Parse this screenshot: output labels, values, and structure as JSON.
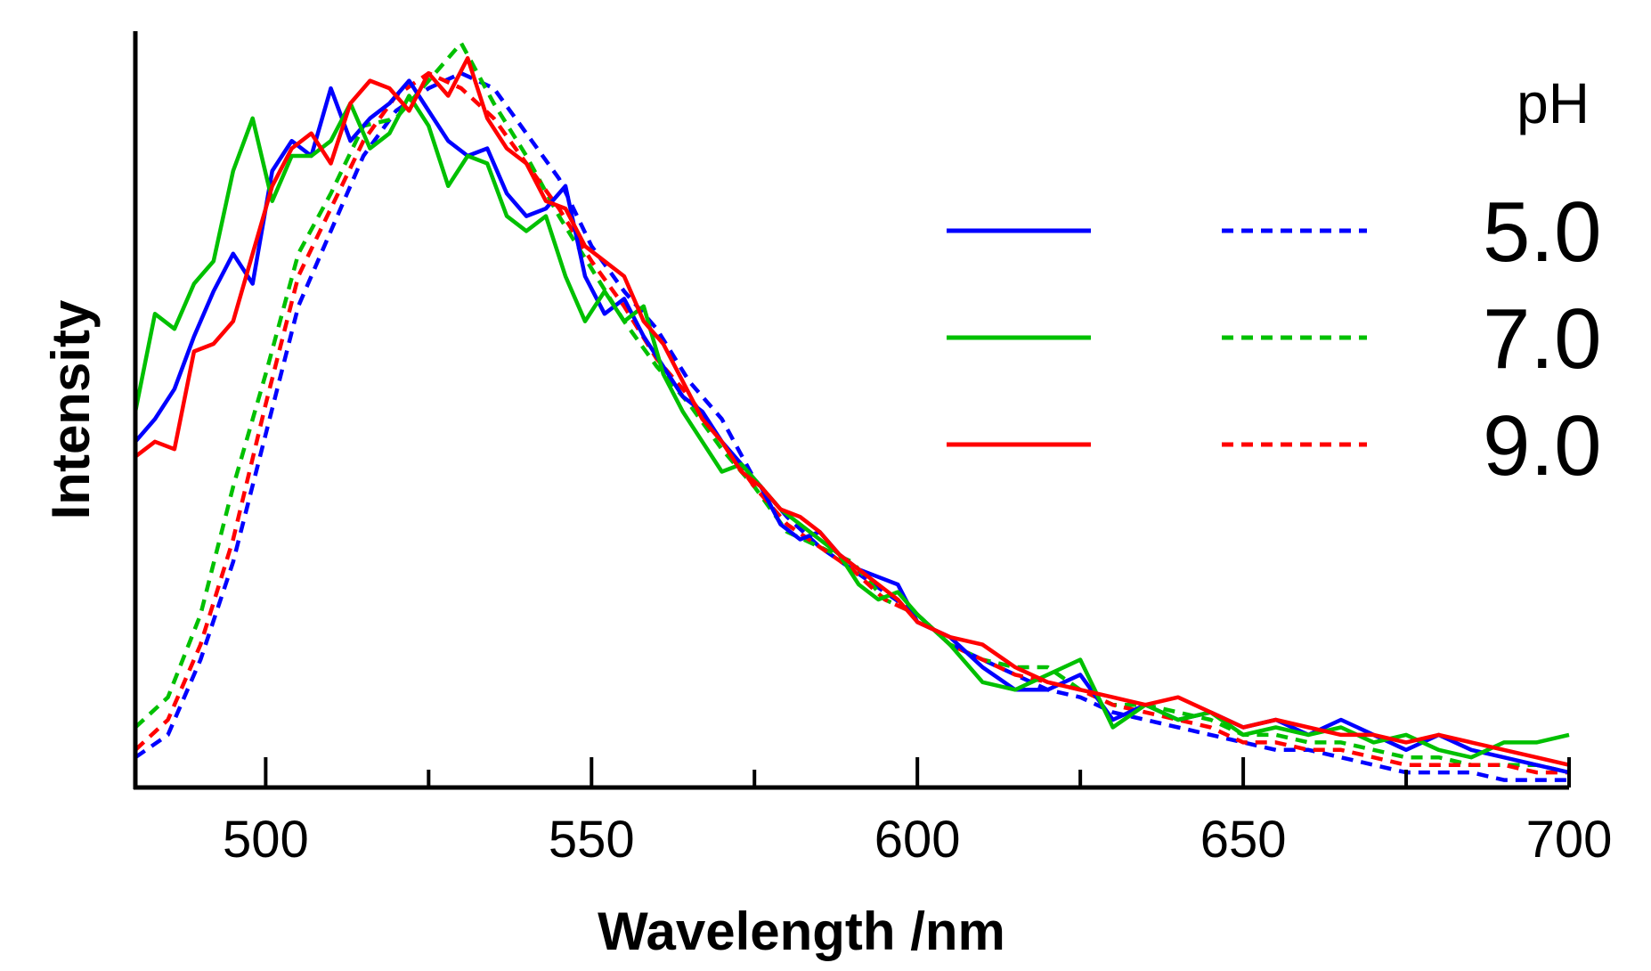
{
  "chart_data": {
    "type": "line",
    "title": "",
    "xlabel": "Wavelength /nm",
    "ylabel": "Intensity",
    "xlim": [
      480,
      700
    ],
    "ylim": [
      0,
      1
    ],
    "xticks_major": [
      500,
      550,
      600,
      650,
      700
    ],
    "xticks_minor": [
      525,
      575,
      625,
      675
    ],
    "x_tick_labels": [
      "500",
      "550",
      "600",
      "650",
      "700"
    ],
    "grid": false,
    "legend": {
      "title": "pH",
      "position": "right",
      "columns": [
        "solid",
        "dashed"
      ],
      "entries": [
        {
          "label": "5.0",
          "color": "#0000ff"
        },
        {
          "label": "7.0",
          "color": "#00c000"
        },
        {
          "label": "9.0",
          "color": "#ff0000"
        }
      ]
    },
    "series": [
      {
        "name": "pH 5.0 (solid)",
        "color": "#0000ff",
        "style": "solid",
        "x": [
          480,
          483,
          486,
          489,
          492,
          495,
          498,
          501,
          504,
          507,
          510,
          513,
          516,
          519,
          522,
          525,
          528,
          531,
          534,
          537,
          540,
          543,
          546,
          549,
          552,
          555,
          558,
          561,
          564,
          567,
          570,
          573,
          576,
          579,
          582,
          585,
          588,
          591,
          594,
          597,
          600,
          605,
          610,
          615,
          620,
          625,
          630,
          635,
          640,
          645,
          650,
          655,
          660,
          665,
          670,
          675,
          680,
          685,
          690,
          695,
          700
        ],
        "y": [
          0.46,
          0.49,
          0.53,
          0.6,
          0.66,
          0.71,
          0.67,
          0.82,
          0.86,
          0.84,
          0.93,
          0.86,
          0.89,
          0.91,
          0.94,
          0.9,
          0.86,
          0.84,
          0.85,
          0.79,
          0.76,
          0.77,
          0.8,
          0.68,
          0.63,
          0.65,
          0.6,
          0.56,
          0.52,
          0.5,
          0.46,
          0.43,
          0.4,
          0.35,
          0.33,
          0.34,
          0.31,
          0.29,
          0.28,
          0.27,
          0.22,
          0.2,
          0.16,
          0.13,
          0.13,
          0.15,
          0.09,
          0.11,
          0.09,
          0.1,
          0.08,
          0.09,
          0.07,
          0.09,
          0.07,
          0.05,
          0.07,
          0.05,
          0.04,
          0.03,
          0.02
        ]
      },
      {
        "name": "pH 7.0 (solid)",
        "color": "#00c000",
        "style": "solid",
        "x": [
          480,
          483,
          486,
          489,
          492,
          495,
          498,
          501,
          504,
          507,
          510,
          513,
          516,
          519,
          522,
          525,
          528,
          531,
          534,
          537,
          540,
          543,
          546,
          549,
          552,
          555,
          558,
          561,
          564,
          567,
          570,
          573,
          576,
          579,
          582,
          585,
          588,
          591,
          594,
          597,
          600,
          605,
          610,
          615,
          620,
          625,
          630,
          635,
          640,
          645,
          650,
          655,
          660,
          665,
          670,
          675,
          680,
          685,
          690,
          695,
          700
        ],
        "y": [
          0.5,
          0.63,
          0.61,
          0.67,
          0.7,
          0.82,
          0.89,
          0.78,
          0.84,
          0.84,
          0.86,
          0.91,
          0.85,
          0.87,
          0.92,
          0.88,
          0.8,
          0.84,
          0.83,
          0.76,
          0.74,
          0.76,
          0.68,
          0.62,
          0.66,
          0.62,
          0.64,
          0.55,
          0.5,
          0.46,
          0.42,
          0.43,
          0.4,
          0.37,
          0.35,
          0.33,
          0.31,
          0.27,
          0.25,
          0.26,
          0.23,
          0.19,
          0.14,
          0.13,
          0.15,
          0.17,
          0.08,
          0.11,
          0.09,
          0.1,
          0.07,
          0.08,
          0.07,
          0.08,
          0.06,
          0.07,
          0.05,
          0.04,
          0.06,
          0.06,
          0.07
        ]
      },
      {
        "name": "pH 9.0 (solid)",
        "color": "#ff0000",
        "style": "solid",
        "x": [
          480,
          483,
          486,
          489,
          492,
          495,
          498,
          501,
          504,
          507,
          510,
          513,
          516,
          519,
          522,
          525,
          528,
          531,
          534,
          537,
          540,
          543,
          546,
          549,
          552,
          555,
          558,
          561,
          564,
          567,
          570,
          573,
          576,
          579,
          582,
          585,
          588,
          591,
          594,
          597,
          600,
          605,
          610,
          615,
          620,
          625,
          630,
          635,
          640,
          645,
          650,
          655,
          660,
          665,
          670,
          675,
          680,
          685,
          690,
          695,
          700
        ],
        "y": [
          0.44,
          0.46,
          0.45,
          0.58,
          0.59,
          0.62,
          0.71,
          0.8,
          0.85,
          0.87,
          0.83,
          0.91,
          0.94,
          0.93,
          0.9,
          0.95,
          0.92,
          0.97,
          0.89,
          0.85,
          0.83,
          0.78,
          0.77,
          0.72,
          0.7,
          0.68,
          0.62,
          0.59,
          0.54,
          0.49,
          0.46,
          0.42,
          0.4,
          0.37,
          0.36,
          0.34,
          0.31,
          0.29,
          0.27,
          0.25,
          0.22,
          0.2,
          0.19,
          0.16,
          0.14,
          0.13,
          0.12,
          0.11,
          0.12,
          0.1,
          0.08,
          0.09,
          0.08,
          0.07,
          0.07,
          0.06,
          0.07,
          0.06,
          0.05,
          0.04,
          0.03
        ]
      },
      {
        "name": "pH 5.0 (dashed)",
        "color": "#0000ff",
        "style": "dashed",
        "x": [
          480,
          485,
          490,
          495,
          500,
          505,
          510,
          515,
          520,
          525,
          530,
          535,
          540,
          545,
          550,
          555,
          560,
          565,
          570,
          575,
          580,
          585,
          590,
          595,
          600,
          605,
          610,
          615,
          620,
          625,
          630,
          635,
          640,
          645,
          650,
          655,
          660,
          665,
          670,
          675,
          680,
          685,
          690,
          695,
          700
        ],
        "y": [
          0.04,
          0.07,
          0.17,
          0.3,
          0.47,
          0.64,
          0.74,
          0.84,
          0.9,
          0.93,
          0.95,
          0.93,
          0.87,
          0.81,
          0.72,
          0.66,
          0.61,
          0.54,
          0.49,
          0.41,
          0.36,
          0.32,
          0.29,
          0.26,
          0.23,
          0.19,
          0.17,
          0.15,
          0.13,
          0.12,
          0.1,
          0.09,
          0.08,
          0.07,
          0.06,
          0.05,
          0.05,
          0.04,
          0.03,
          0.02,
          0.02,
          0.02,
          0.01,
          0.01,
          0.01
        ]
      },
      {
        "name": "pH 7.0 (dashed)",
        "color": "#00c000",
        "style": "dashed",
        "x": [
          480,
          485,
          490,
          495,
          500,
          505,
          510,
          515,
          520,
          525,
          530,
          535,
          540,
          545,
          550,
          555,
          560,
          565,
          570,
          575,
          580,
          585,
          590,
          595,
          600,
          605,
          610,
          615,
          620,
          625,
          630,
          635,
          640,
          645,
          650,
          655,
          660,
          665,
          670,
          675,
          680,
          685,
          690,
          695,
          700
        ],
        "y": [
          0.08,
          0.12,
          0.23,
          0.4,
          0.55,
          0.71,
          0.79,
          0.88,
          0.89,
          0.94,
          0.99,
          0.91,
          0.84,
          0.76,
          0.69,
          0.62,
          0.56,
          0.51,
          0.45,
          0.4,
          0.34,
          0.32,
          0.3,
          0.25,
          0.23,
          0.19,
          0.17,
          0.16,
          0.16,
          0.13,
          0.11,
          0.11,
          0.1,
          0.09,
          0.07,
          0.07,
          0.06,
          0.06,
          0.05,
          0.04,
          0.04,
          0.03,
          0.03,
          0.03,
          0.02
        ]
      },
      {
        "name": "pH 9.0 (dashed)",
        "color": "#ff0000",
        "style": "dashed",
        "x": [
          480,
          485,
          490,
          495,
          500,
          505,
          510,
          515,
          520,
          525,
          530,
          535,
          540,
          545,
          550,
          555,
          560,
          565,
          570,
          575,
          580,
          585,
          590,
          595,
          600,
          605,
          610,
          615,
          620,
          625,
          630,
          635,
          640,
          645,
          650,
          655,
          660,
          665,
          670,
          675,
          680,
          685,
          690,
          695,
          700
        ],
        "y": [
          0.05,
          0.09,
          0.19,
          0.33,
          0.51,
          0.68,
          0.77,
          0.86,
          0.92,
          0.95,
          0.93,
          0.89,
          0.83,
          0.77,
          0.7,
          0.64,
          0.57,
          0.52,
          0.46,
          0.4,
          0.35,
          0.32,
          0.29,
          0.25,
          0.23,
          0.19,
          0.17,
          0.15,
          0.14,
          0.13,
          0.11,
          0.1,
          0.09,
          0.08,
          0.06,
          0.06,
          0.05,
          0.05,
          0.04,
          0.03,
          0.03,
          0.03,
          0.03,
          0.02,
          0.02
        ]
      }
    ]
  }
}
